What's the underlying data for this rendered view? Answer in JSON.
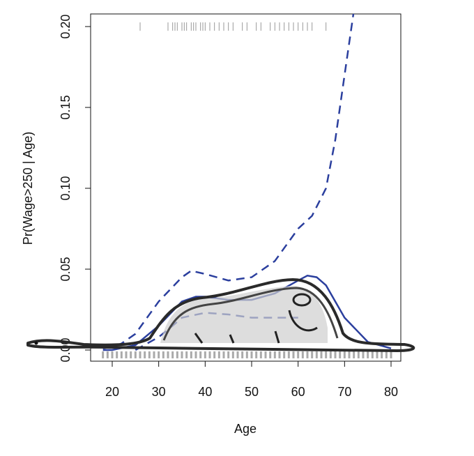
{
  "chart_data": {
    "type": "line",
    "x_label": "Age",
    "y_label": "Pr(Wage>250 | Age)",
    "xlim": [
      15.35,
      82.1
    ],
    "ylim": [
      -0.0069,
      0.2078
    ],
    "xticks": [
      20,
      30,
      40,
      50,
      60,
      70,
      80
    ],
    "yticks": [
      {
        "value": 0,
        "label": "0.00"
      },
      {
        "value": 0.05,
        "label": "0.05"
      },
      {
        "value": 0.1,
        "label": "0.10"
      },
      {
        "value": 0.15,
        "label": "0.15"
      },
      {
        "value": 0.2,
        "label": "0.20"
      }
    ],
    "series": [
      {
        "style": "solid",
        "color": "#2b3f9e",
        "x": [
          18,
          20,
          25,
          30,
          35,
          38,
          40,
          45,
          50,
          55,
          60,
          62,
          64,
          66,
          70,
          75,
          80
        ],
        "values": [
          0,
          0,
          0.003,
          0.015,
          0.03,
          0.033,
          0.033,
          0.031,
          0.031,
          0.035,
          0.043,
          0.046,
          0.045,
          0.04,
          0.02,
          0.005,
          0.001
        ]
      },
      {
        "style": "dashed",
        "color": "#2b3f9e",
        "x": [
          18,
          20,
          22,
          25,
          30,
          35,
          37,
          40,
          45,
          50,
          55,
          60,
          63,
          66,
          68,
          70,
          72
        ],
        "values": [
          0.001,
          0.002,
          0.004,
          0.01,
          0.03,
          0.045,
          0.049,
          0.047,
          0.043,
          0.045,
          0.055,
          0.075,
          0.083,
          0.1,
          0.13,
          0.17,
          0.21
        ]
      },
      {
        "style": "dashed",
        "color": "#2b3f9e",
        "x": [
          25,
          30,
          33,
          35,
          40,
          45,
          50,
          55,
          60
        ],
        "values": [
          0,
          0.008,
          0.015,
          0.02,
          0.023,
          0.022,
          0.02,
          0.02,
          0.02
        ]
      }
    ],
    "rug_top_y": 0.2,
    "rug_top": [
      26,
      32,
      33,
      33.5,
      34,
      35,
      35.5,
      36,
      37,
      37.5,
      38,
      39,
      39.5,
      40,
      41,
      42,
      43,
      44,
      45,
      46,
      48,
      49,
      51,
      52,
      54,
      55,
      56,
      57,
      58,
      59,
      60,
      61,
      62,
      63,
      66
    ],
    "rug_bottom_y": -0.003,
    "rug_bottom": [
      18,
      19,
      20,
      21,
      22,
      23,
      24,
      25,
      26,
      27,
      28,
      29,
      30,
      31,
      32,
      33,
      34,
      35,
      36,
      37,
      38,
      39,
      40,
      41,
      42,
      43,
      44,
      45,
      46,
      47,
      48,
      49,
      50,
      51,
      52,
      53,
      54,
      55,
      56,
      57,
      58,
      59,
      60,
      61,
      62,
      63,
      64,
      65,
      66,
      67,
      68,
      69,
      70,
      71,
      72,
      73,
      74,
      75,
      76,
      77,
      78,
      79,
      80
    ]
  }
}
